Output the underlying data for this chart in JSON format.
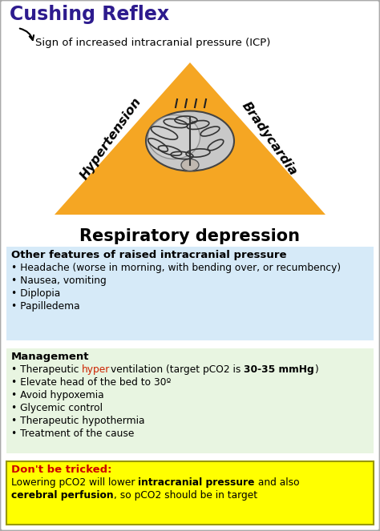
{
  "title": "Cushing Reflex",
  "title_color": "#2d1b8e",
  "subtitle": "Sign of increased intracranial pressure (ICP)",
  "triangle_color": "#f5a623",
  "triangle_label_left": "Hypertension",
  "triangle_label_right": "Bradycardia",
  "triangle_label_bottom": "Respiratory depression",
  "section1_title": "Other features of raised intracranial pressure",
  "section1_bullets": [
    "Headache (worse in morning, with bending over, or recumbency)",
    "Nausea, vomiting",
    "Diplopia",
    "Papilledema"
  ],
  "section1_bg": "#d6eaf8",
  "section2_title": "Management",
  "section2_bg": "#e8f5e1",
  "trick_title": "Don't be tricked:",
  "trick_title_color": "#cc0000",
  "trick_bg": "#ffff00",
  "bg_color": "#ffffff",
  "border_color": "#aaaaaa",
  "figw": 4.74,
  "figh": 6.63,
  "dpi": 100
}
